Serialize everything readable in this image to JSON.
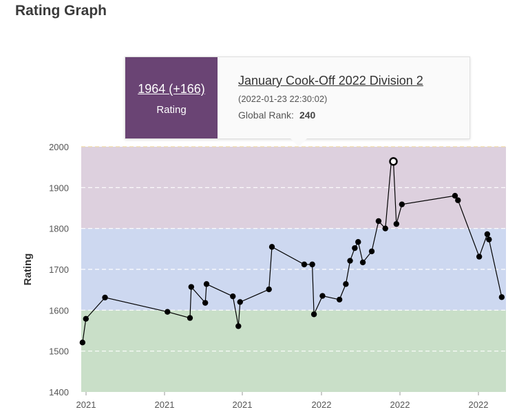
{
  "page": {
    "title": "Rating Graph"
  },
  "tooltip": {
    "rating_value": "1964 (+166)",
    "rating_label": "Rating",
    "contest_name": "January Cook-Off 2022 Division 2",
    "date": "(2022-01-23 22:30:02)",
    "global_rank_label": "Global Rank:",
    "global_rank_value": "240"
  },
  "chart_data": {
    "type": "line",
    "ylabel": "Rating",
    "ylim": [
      1400,
      2000
    ],
    "yticks": [
      1400,
      1500,
      1600,
      1700,
      1800,
      1900,
      2000
    ],
    "xticks": [
      "2021",
      "2021",
      "2021",
      "2022",
      "2022",
      "2022"
    ],
    "bands": [
      {
        "from": 1400,
        "to": 1600,
        "color": "#c9dfc8"
      },
      {
        "from": 1600,
        "to": 1800,
        "color": "#cdd8f0"
      },
      {
        "from": 1800,
        "to": 2000,
        "color": "#ddd0de"
      }
    ],
    "line_color": "#000000",
    "highlight_color": "#000000",
    "highlight_index": 34,
    "series": [
      {
        "x": [
          0.3,
          1.1,
          5.6,
          20.3,
          25.6,
          25.9,
          29.2,
          29.5,
          35.7,
          37.0,
          37.4,
          44.2,
          44.9,
          52.5,
          54.4,
          54.8,
          56.8,
          60.8,
          62.3,
          63.3,
          64.4,
          65.2,
          66.3,
          68.4,
          70.0,
          71.6,
          73.0,
          74.2,
          75.5,
          88.0,
          88.7,
          93.7,
          95.6,
          96.0,
          73.5,
          99.0
        ],
        "y": [
          1521,
          1579,
          1631,
          1596,
          1581,
          1657,
          1618,
          1664,
          1634,
          1561,
          1620,
          1651,
          1755,
          1712,
          1712,
          1590,
          1635,
          1626,
          1664,
          1721,
          1752,
          1767,
          1717,
          1744,
          1818,
          1800,
          1964,
          1811,
          1859,
          1880,
          1869,
          1731,
          1786,
          1773,
          1964,
          1632
        ]
      }
    ]
  }
}
